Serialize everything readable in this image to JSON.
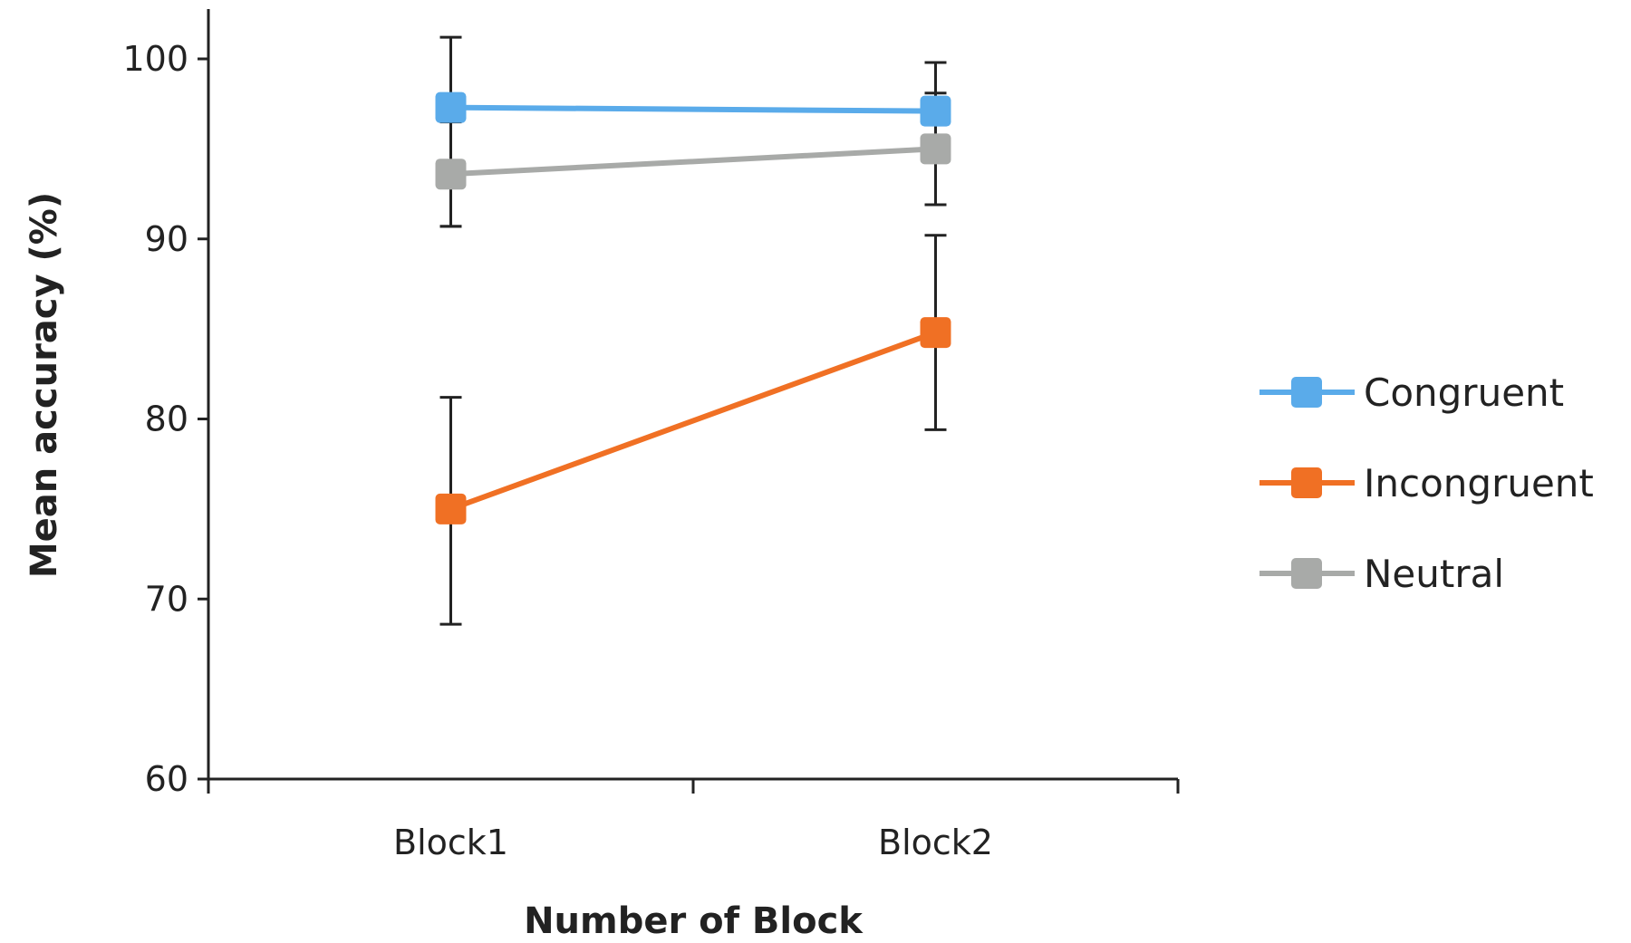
{
  "chart_data": {
    "type": "line",
    "title": "",
    "xlabel": "Number of Block",
    "ylabel": "Mean accuracy  (%)",
    "categories": [
      "Block1",
      "Block2"
    ],
    "ylim": [
      60,
      100
    ],
    "yticks": [
      60,
      70,
      80,
      90,
      100
    ],
    "grid": false,
    "legend_position": "right",
    "series": [
      {
        "name": "Congruent",
        "color": "#5aabea",
        "values": [
          97.3,
          97.1
        ],
        "error_low": [
          90.7,
          91.9
        ],
        "error_high": [
          101.2,
          99.8
        ]
      },
      {
        "name": "Incongruent",
        "color": "#f07024",
        "values": [
          75.0,
          84.8
        ],
        "error_low": [
          68.6,
          79.4
        ],
        "error_high": [
          81.2,
          90.2
        ]
      },
      {
        "name": "Neutral",
        "color": "#a8aaa8",
        "values": [
          93.6,
          95.0
        ],
        "error_low": [
          90.7,
          91.9
        ],
        "error_high": [
          96.5,
          98.1
        ]
      }
    ]
  }
}
